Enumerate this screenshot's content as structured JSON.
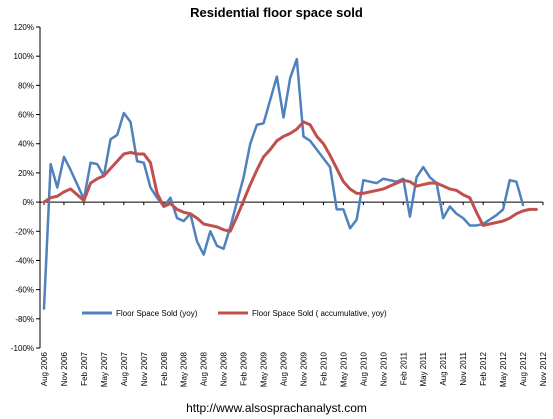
{
  "chart_data": {
    "type": "line",
    "title": "Residential floor space sold",
    "footer_text": "http://www.alsosprachanalyst.com",
    "y_axis": {
      "min": -100,
      "max": 120,
      "step": 20,
      "tick_labels": [
        "120%",
        "100%",
        "80%",
        "60%",
        "40%",
        "20%",
        "0%",
        "-20%",
        "-40%",
        "-60%",
        "-80%",
        "-100%"
      ]
    },
    "x_axis": {
      "start": "Aug 2006",
      "end": "Nov 2012",
      "tick_labels": [
        "Aug 2006",
        "Nov 2006",
        "Feb 2007",
        "May 2007",
        "Aug 2007",
        "Nov 2007",
        "Feb 2008",
        "May 2008",
        "Aug 2008",
        "Nov 2008",
        "Feb 2009",
        "May 2009",
        "Aug 2009",
        "Nov 2009",
        "Feb 2010",
        "May 2010",
        "Aug 2010",
        "Nov 2010",
        "Feb 2011",
        "May 2011",
        "Aug 2011",
        "Nov 2011",
        "Feb 2012",
        "May 2012",
        "Aug 2012",
        "Nov 2012"
      ]
    },
    "x": [
      "2006-08",
      "2006-09",
      "2006-10",
      "2006-11",
      "2006-12",
      "2007-01",
      "2007-02",
      "2007-03",
      "2007-04",
      "2007-05",
      "2007-06",
      "2007-07",
      "2007-08",
      "2007-09",
      "2007-10",
      "2007-11",
      "2007-12",
      "2008-01",
      "2008-02",
      "2008-03",
      "2008-04",
      "2008-05",
      "2008-06",
      "2008-07",
      "2008-08",
      "2008-09",
      "2008-10",
      "2008-11",
      "2008-12",
      "2009-01",
      "2009-02",
      "2009-03",
      "2009-04",
      "2009-05",
      "2009-06",
      "2009-07",
      "2009-08",
      "2009-09",
      "2009-10",
      "2009-11",
      "2009-12",
      "2010-01",
      "2010-02",
      "2010-03",
      "2010-04",
      "2010-05",
      "2010-06",
      "2010-07",
      "2010-08",
      "2010-09",
      "2010-10",
      "2010-11",
      "2010-12",
      "2011-01",
      "2011-02",
      "2011-03",
      "2011-04",
      "2011-05",
      "2011-06",
      "2011-07",
      "2011-08",
      "2011-09",
      "2011-10",
      "2011-11",
      "2011-12",
      "2012-01",
      "2012-02",
      "2012-03",
      "2012-04",
      "2012-05",
      "2012-06",
      "2012-07",
      "2012-08",
      "2012-09",
      "2012-10"
    ],
    "series": [
      {
        "name": "Floor Space Sold (yoy)",
        "color": "#4F81BD",
        "values": [
          -73,
          26,
          10,
          31,
          22,
          12,
          2,
          27,
          26,
          18,
          43,
          46,
          61,
          55,
          28,
          27,
          10,
          3,
          -3,
          3,
          -11,
          -13,
          -8,
          -27,
          -36,
          -20,
          -30,
          -32,
          -17,
          0,
          17,
          40,
          53,
          54,
          70,
          86,
          58,
          85,
          98,
          45,
          42,
          36,
          30,
          24,
          -5,
          -5,
          -18,
          -12,
          15,
          14,
          13,
          16,
          15,
          14,
          16,
          -10,
          17,
          24,
          17,
          13,
          -11,
          -3,
          -8,
          -11,
          -16,
          -16,
          -15,
          -12,
          -9,
          -5,
          15,
          14,
          -2,
          null,
          null
        ]
      },
      {
        "name": "Floor Space Sold ( accumulative, yoy)",
        "color": "#C0504D",
        "values": [
          0,
          3,
          4,
          7,
          9,
          5,
          1,
          13,
          16,
          18,
          23,
          28,
          33,
          34,
          33,
          33,
          27,
          6,
          -3,
          -1,
          -5,
          -7,
          -8,
          -11,
          -15,
          -16,
          -17,
          -19,
          -20,
          -10,
          1,
          12,
          22,
          31,
          36,
          42,
          45,
          47,
          50,
          55,
          53,
          45,
          40,
          32,
          23,
          14,
          9,
          6,
          6,
          7,
          8,
          9,
          11,
          13,
          15,
          14,
          11,
          12,
          13,
          13,
          11,
          9,
          8,
          5,
          3,
          -7,
          -16,
          -15,
          -14,
          -13,
          -11,
          -8,
          -6,
          -5,
          -5
        ]
      }
    ],
    "legend_position": "bottom-inside",
    "grid": false
  }
}
